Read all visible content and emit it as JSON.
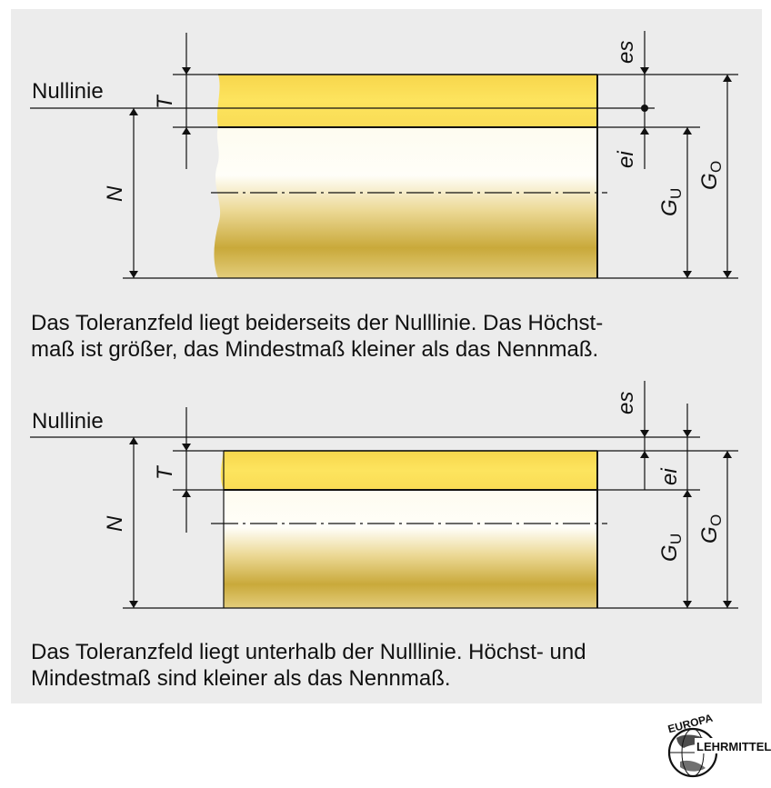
{
  "diagram_1": {
    "zero_line_label": "Nullinie",
    "labels": {
      "T": "T",
      "N": "N",
      "es": "es",
      "ei": "ei",
      "Gu": "G",
      "Gu_sub": "U",
      "Go": "G",
      "Go_sub": "O"
    },
    "caption": [
      "Das Toleranzfeld liegt beiderseits der Nulllinie. Das Höchst-",
      "maß ist größer, das Mindestmaß kleiner als das Nennmaß."
    ]
  },
  "diagram_2": {
    "zero_line_label": "Nullinie",
    "labels": {
      "T": "T",
      "N": "N",
      "es": "es",
      "ei": "ei",
      "Gu": "G",
      "Gu_sub": "U",
      "Go": "G",
      "Go_sub": "O"
    },
    "caption": [
      "Das Toleranzfeld liegt unterhalb der Nulllinie. Höchst- und",
      "Mindestmaß sind kleiner als das Nennmaß."
    ]
  },
  "logo": {
    "top_text": "EUROPA",
    "bottom_text": "LEHRMITTEL"
  },
  "colors": {
    "tolerance_field": "#fde25a",
    "shaft_light": "#fffdf2",
    "shaft_dark": "#c9a93a",
    "background": "#ececec"
  }
}
